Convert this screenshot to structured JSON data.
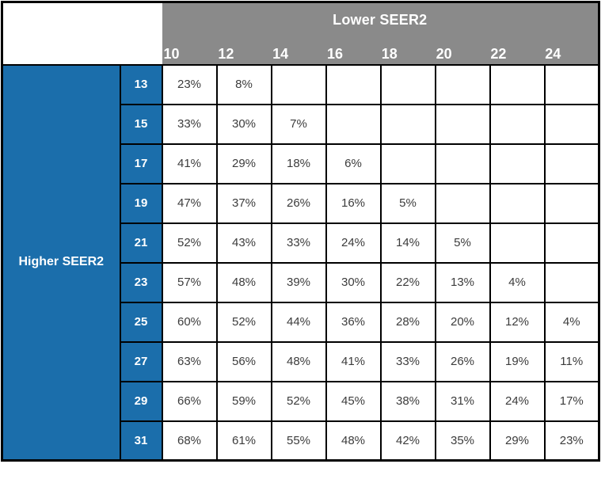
{
  "table": {
    "col_header_group": "Lower SEER2",
    "row_header_group": "Higher SEER2",
    "col_headers": [
      "10",
      "12",
      "14",
      "16",
      "18",
      "20",
      "22",
      "24"
    ],
    "rows": [
      {
        "label": "13",
        "values": [
          "23%",
          "8%",
          "",
          "",
          "",
          "",
          "",
          ""
        ]
      },
      {
        "label": "15",
        "values": [
          "33%",
          "30%",
          "7%",
          "",
          "",
          "",
          "",
          ""
        ]
      },
      {
        "label": "17",
        "values": [
          "41%",
          "29%",
          "18%",
          "6%",
          "",
          "",
          "",
          ""
        ]
      },
      {
        "label": "19",
        "values": [
          "47%",
          "37%",
          "26%",
          "16%",
          "5%",
          "",
          "",
          ""
        ]
      },
      {
        "label": "21",
        "values": [
          "52%",
          "43%",
          "33%",
          "24%",
          "14%",
          "5%",
          "",
          ""
        ]
      },
      {
        "label": "23",
        "values": [
          "57%",
          "48%",
          "39%",
          "30%",
          "22%",
          "13%",
          "4%",
          ""
        ]
      },
      {
        "label": "25",
        "values": [
          "60%",
          "52%",
          "44%",
          "36%",
          "28%",
          "20%",
          "12%",
          "4%"
        ]
      },
      {
        "label": "27",
        "values": [
          "63%",
          "56%",
          "48%",
          "41%",
          "33%",
          "26%",
          "19%",
          "11%"
        ]
      },
      {
        "label": "29",
        "values": [
          "66%",
          "59%",
          "52%",
          "45%",
          "38%",
          "31%",
          "24%",
          "17%"
        ]
      },
      {
        "label": "31",
        "values": [
          "68%",
          "61%",
          "55%",
          "48%",
          "42%",
          "35%",
          "29%",
          "23%"
        ]
      }
    ],
    "colors": {
      "header_gray": "#8A8A8A",
      "side_blue": "#1B6EAB",
      "border_black": "#000000",
      "header_text": "#FFFFFF",
      "data_text": "#3C3C3C"
    }
  },
  "chart_data": {
    "type": "table",
    "title": "",
    "col_group_label": "Lower SEER2",
    "row_group_label": "Higher SEER2",
    "columns": [
      10,
      12,
      14,
      16,
      18,
      20,
      22,
      24
    ],
    "rows": [
      13,
      15,
      17,
      19,
      21,
      23,
      25,
      27,
      29,
      31
    ],
    "values_pct": [
      [
        23,
        8,
        null,
        null,
        null,
        null,
        null,
        null
      ],
      [
        33,
        30,
        7,
        null,
        null,
        null,
        null,
        null
      ],
      [
        41,
        29,
        18,
        6,
        null,
        null,
        null,
        null
      ],
      [
        47,
        37,
        26,
        16,
        5,
        null,
        null,
        null
      ],
      [
        52,
        43,
        33,
        24,
        14,
        5,
        null,
        null
      ],
      [
        57,
        48,
        39,
        30,
        22,
        13,
        4,
        null
      ],
      [
        60,
        52,
        44,
        36,
        28,
        20,
        12,
        4
      ],
      [
        63,
        56,
        48,
        41,
        33,
        26,
        19,
        11
      ],
      [
        66,
        59,
        52,
        45,
        38,
        31,
        24,
        17
      ],
      [
        68,
        61,
        55,
        48,
        42,
        35,
        29,
        23
      ]
    ]
  }
}
